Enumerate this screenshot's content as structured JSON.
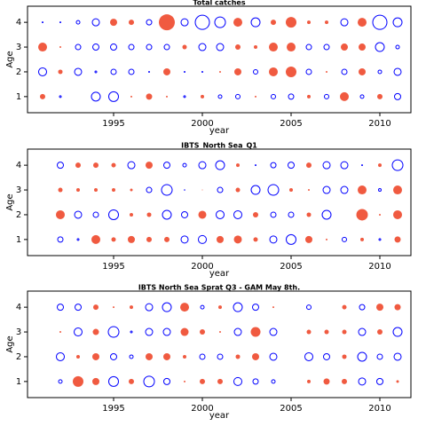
{
  "chart_data": [
    {
      "type": "bubble",
      "title": "Total catches",
      "xlabel": "year",
      "ylabel": "Age",
      "xlim": [
        1990.15,
        2011.75
      ],
      "xticks": [
        1995,
        2000,
        2005,
        2010
      ],
      "ylim": [
        0.35,
        4.65
      ],
      "yticks": [
        1,
        2,
        3,
        4
      ],
      "positive_color": "#0000ff",
      "negative_color": "#f05a40",
      "x": [
        1991,
        1992,
        1993,
        1994,
        1995,
        1996,
        1997,
        1998,
        1999,
        2000,
        2001,
        2002,
        2003,
        2004,
        2005,
        2006,
        2007,
        2008,
        2009,
        2010,
        2011
      ],
      "y": [
        1,
        2,
        3,
        4
      ],
      "values": [
        [
          -3,
          1,
          null,
          5,
          5.5,
          -1,
          -3.5,
          -1,
          1,
          -2,
          2,
          2.5,
          -1,
          2.5,
          3,
          -2,
          2.5,
          -5,
          2,
          -3,
          3.5
        ],
        [
          4.5,
          -2.5,
          4,
          1,
          3,
          3,
          0.5,
          -4,
          0.5,
          0.5,
          -1,
          -4,
          2.5,
          -5,
          -6,
          3,
          -1,
          3,
          -4,
          2,
          4
        ],
        [
          -5,
          -1,
          3,
          3.5,
          3.5,
          3,
          3,
          3,
          -2.5,
          4,
          4,
          -3,
          -2,
          -5,
          -5,
          3,
          3,
          -4,
          -4,
          5,
          2
        ],
        [
          0.5,
          0.5,
          2,
          4,
          -4,
          -3,
          3,
          -9,
          4,
          8,
          6,
          -5,
          5,
          -3,
          -6,
          -2,
          -2,
          4,
          -5,
          8,
          5
        ]
      ]
    },
    {
      "type": "bubble",
      "title": "IBTS_North Sea_Q1",
      "xlabel": "year",
      "ylabel": "Age",
      "xlim": [
        1990.15,
        2011.75
      ],
      "xticks": [
        1995,
        2000,
        2005,
        2010
      ],
      "ylim": [
        0.35,
        4.65
      ],
      "yticks": [
        1,
        2,
        3,
        4
      ],
      "positive_color": "#0000ff",
      "negative_color": "#f05a40",
      "x": [
        1992,
        1993,
        1994,
        1995,
        1996,
        1997,
        1998,
        1999,
        2000,
        2001,
        2002,
        2003,
        2004,
        2005,
        2006,
        2007,
        2008,
        2009,
        2010,
        2011
      ],
      "y": [
        1,
        2,
        3,
        4
      ],
      "values": [
        [
          3,
          1,
          -5,
          -2.5,
          -4,
          -3,
          -3,
          4,
          4.5,
          -4,
          -4.5,
          -2.5,
          4,
          5.5,
          -4,
          -1,
          2.5,
          -2,
          1,
          -3.5
        ],
        [
          -5,
          4,
          3,
          5.5,
          -2,
          -2.5,
          5,
          3.5,
          -4.5,
          4.5,
          4.5,
          -3,
          3,
          3,
          -2.5,
          5,
          null,
          -6.5,
          -1,
          -5
        ],
        [
          -2.5,
          -2,
          -2,
          -2,
          -1.5,
          3,
          6,
          0.3,
          -0.5,
          3,
          -2.5,
          5,
          6,
          -2,
          -1,
          4,
          4,
          -5,
          1.5,
          -5
        ],
        [
          3.5,
          -3,
          -3,
          -2.5,
          4,
          -4,
          3.5,
          2,
          4,
          5,
          -2,
          0.5,
          3,
          3.5,
          -3,
          4,
          4,
          0.5,
          -2,
          6
        ]
      ]
    },
    {
      "type": "bubble",
      "title": "IBTS North Sea Sprat Q3 - GAM May 8th.",
      "xlabel": "year",
      "ylabel": "Age",
      "xlim": [
        1990.15,
        2011.75
      ],
      "xticks": [
        1995,
        2000,
        2005,
        2010
      ],
      "ylim": [
        0.35,
        4.65
      ],
      "yticks": [
        1,
        2,
        3,
        4
      ],
      "positive_color": "#0000ff",
      "negative_color": "#f05a40",
      "x": [
        1992,
        1993,
        1994,
        1995,
        1996,
        1997,
        1998,
        1999,
        2000,
        2001,
        2002,
        2003,
        2004,
        2005,
        2006,
        2007,
        2008,
        2009,
        2010,
        2011
      ],
      "y": [
        1,
        2,
        3,
        4
      ],
      "values": [
        [
          2,
          -6,
          -4,
          5.5,
          -3,
          6,
          3.5,
          -1,
          -3,
          -3,
          4.5,
          3,
          2,
          null,
          -2,
          -3.5,
          -3,
          4,
          3.5,
          -1.5
        ],
        [
          4.5,
          -2,
          -4,
          3.5,
          2,
          -4,
          -4,
          -2,
          3,
          3,
          -2.5,
          -4,
          4,
          null,
          4.5,
          3.5,
          -2.5,
          5,
          3,
          4
        ],
        [
          -1,
          4.5,
          -3.5,
          6,
          1,
          4,
          4,
          -4.5,
          -3,
          -1,
          4,
          -5.5,
          4,
          null,
          -2.5,
          -2.5,
          -2.5,
          4,
          -3,
          5
        ],
        [
          3.5,
          3.5,
          -3,
          -1,
          -2,
          4,
          5,
          -5,
          2,
          -2,
          5,
          3.5,
          -1,
          null,
          2.5,
          null,
          -2.5,
          3,
          -4,
          -3.5
        ]
      ]
    }
  ]
}
